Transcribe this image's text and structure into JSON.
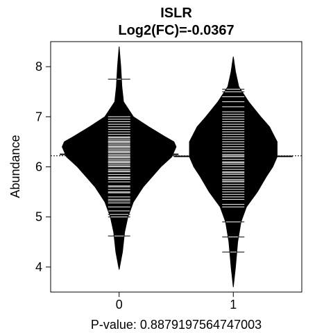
{
  "chart_data": {
    "type": "beanplot",
    "title": "ISLR",
    "subtitle": "Log2(FC)=-0.0367",
    "xlabel": "P-value: 0.8879197564747003",
    "ylabel": "Abundance",
    "categories": [
      "0",
      "1"
    ],
    "ylim": [
      3.5,
      8.5
    ],
    "yticks": [
      "4",
      "5",
      "6",
      "7",
      "8"
    ],
    "overall_mean": 6.22,
    "group_means": [
      6.25,
      6.21
    ],
    "density_profiles": [
      [
        [
          3.95,
          0.0
        ],
        [
          4.3,
          0.03
        ],
        [
          4.7,
          0.05
        ],
        [
          5.0,
          0.08
        ],
        [
          5.3,
          0.13
        ],
        [
          5.6,
          0.22
        ],
        [
          5.8,
          0.3
        ],
        [
          6.0,
          0.38
        ],
        [
          6.2,
          0.48
        ],
        [
          6.4,
          0.52
        ],
        [
          6.5,
          0.5
        ],
        [
          6.6,
          0.42
        ],
        [
          6.8,
          0.27
        ],
        [
          7.0,
          0.13
        ],
        [
          7.3,
          0.04
        ],
        [
          7.6,
          0.025
        ],
        [
          8.0,
          0.015
        ],
        [
          8.4,
          0.0
        ]
      ],
      [
        [
          3.6,
          0.0
        ],
        [
          4.0,
          0.02
        ],
        [
          4.5,
          0.04
        ],
        [
          4.9,
          0.07
        ],
        [
          5.2,
          0.12
        ],
        [
          5.5,
          0.22
        ],
        [
          5.8,
          0.3
        ],
        [
          6.0,
          0.36
        ],
        [
          6.2,
          0.4
        ],
        [
          6.5,
          0.4
        ],
        [
          6.8,
          0.33
        ],
        [
          7.0,
          0.25
        ],
        [
          7.3,
          0.14
        ],
        [
          7.6,
          0.05
        ],
        [
          7.9,
          0.02
        ],
        [
          8.2,
          0.0
        ]
      ]
    ],
    "observations": [
      [
        4.62,
        5.0,
        5.05,
        5.12,
        5.2,
        5.28,
        5.32,
        5.35,
        5.4,
        5.48,
        5.5,
        5.55,
        5.6,
        5.62,
        5.7,
        5.75,
        5.78,
        5.8,
        5.85,
        5.9,
        5.92,
        5.95,
        6.0,
        6.02,
        6.05,
        6.08,
        6.1,
        6.12,
        6.15,
        6.18,
        6.2,
        6.22,
        6.25,
        6.28,
        6.3,
        6.32,
        6.35,
        6.38,
        6.4,
        6.42,
        6.45,
        6.48,
        6.5,
        6.52,
        6.55,
        6.58,
        6.6,
        6.65,
        6.7,
        6.75,
        6.8,
        6.85,
        6.9,
        6.95,
        7.0,
        7.75
      ],
      [
        4.3,
        4.6,
        4.9,
        5.2,
        5.25,
        5.35,
        5.4,
        5.45,
        5.5,
        5.55,
        5.6,
        5.65,
        5.7,
        5.72,
        5.75,
        5.8,
        5.85,
        5.88,
        5.9,
        5.95,
        6.0,
        6.05,
        6.08,
        6.1,
        6.15,
        6.2,
        6.22,
        6.25,
        6.3,
        6.35,
        6.4,
        6.45,
        6.5,
        6.55,
        6.6,
        6.65,
        6.7,
        6.75,
        6.8,
        6.85,
        6.9,
        6.95,
        7.0,
        7.05,
        7.1,
        7.2,
        7.3,
        7.4,
        7.5,
        7.55
      ]
    ]
  }
}
